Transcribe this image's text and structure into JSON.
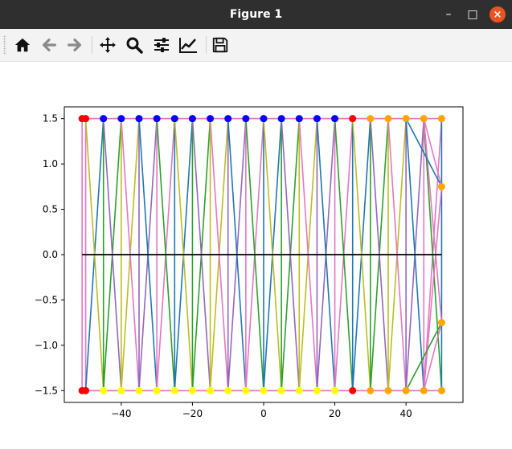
{
  "window": {
    "title": "Figure 1",
    "close_glyph": "×",
    "minimize_glyph": "–",
    "maximize_glyph": "□"
  },
  "toolbar": {
    "buttons": [
      {
        "name": "home",
        "icon": "home-icon",
        "tooltip": "Home"
      },
      {
        "name": "back",
        "icon": "back-arrow-icon",
        "tooltip": "Back"
      },
      {
        "name": "forward",
        "icon": "forward-arrow-icon",
        "tooltip": "Forward"
      },
      {
        "name": "pan",
        "icon": "pan-move-icon",
        "tooltip": "Pan"
      },
      {
        "name": "zoom",
        "icon": "zoom-magnifier-icon",
        "tooltip": "Zoom"
      },
      {
        "name": "subplots",
        "icon": "subplots-sliders-icon",
        "tooltip": "Subplots"
      },
      {
        "name": "customize",
        "icon": "customize-chart-icon",
        "tooltip": "Customize"
      },
      {
        "name": "save",
        "icon": "save-floppy-icon",
        "tooltip": "Save"
      }
    ]
  },
  "chart_data": {
    "type": "line",
    "title": "",
    "xlabel": "",
    "ylabel": "",
    "xlim": [
      -56,
      56
    ],
    "ylim": [
      -1.63,
      1.63
    ],
    "xticks": [
      -40,
      -20,
      0,
      20,
      40
    ],
    "xtick_labels": [
      "−40",
      "−20",
      "0",
      "20",
      "40"
    ],
    "yticks": [
      -1.5,
      -1.0,
      -0.5,
      0.0,
      0.5,
      1.0,
      1.5
    ],
    "ytick_labels": [
      "−1.5",
      "−1.0",
      "−0.5",
      "0.0",
      "0.5",
      "1.0",
      "1.5"
    ],
    "grid": false,
    "legend": "none",
    "colors": {
      "blue_points": "#0000ff",
      "yellow_points": "#ffff00",
      "red_points": "#ff0000",
      "orange_points": "#ffa500",
      "baseline": "#000000",
      "series_palette": [
        "#1f77b4",
        "#2ca02c",
        "#bcbd22",
        "#9467bd",
        "#e377c2"
      ]
    },
    "points": {
      "top_blue": {
        "x": [
          -45,
          -40,
          -35,
          -30,
          -25,
          -20,
          -15,
          -10,
          -5,
          0,
          5,
          10,
          15,
          20
        ],
        "y": 1.5
      },
      "bottom_yellow": {
        "x": [
          -45,
          -40,
          -35,
          -30,
          -25,
          -20,
          -15,
          -10,
          -5,
          0,
          5,
          10,
          15,
          20
        ],
        "y": -1.5
      },
      "red": [
        {
          "x": -51,
          "y": 1.5
        },
        {
          "x": -50,
          "y": 1.5
        },
        {
          "x": 25,
          "y": 1.5
        },
        {
          "x": -51,
          "y": -1.5
        },
        {
          "x": -50,
          "y": -1.5
        },
        {
          "x": 25,
          "y": -1.5
        }
      ],
      "orange": [
        {
          "x": 30,
          "y": 1.5
        },
        {
          "x": 35,
          "y": 1.5
        },
        {
          "x": 40,
          "y": 1.5
        },
        {
          "x": 45,
          "y": 1.5
        },
        {
          "x": 50,
          "y": 1.5
        },
        {
          "x": 50,
          "y": 0.75
        },
        {
          "x": 50,
          "y": -0.75
        },
        {
          "x": 30,
          "y": -1.5
        },
        {
          "x": 35,
          "y": -1.5
        },
        {
          "x": 40,
          "y": -1.5
        },
        {
          "x": 45,
          "y": -1.5
        },
        {
          "x": 50,
          "y": -1.5
        }
      ]
    },
    "baseline": {
      "x": [
        -51,
        50
      ],
      "y": 0
    }
  }
}
